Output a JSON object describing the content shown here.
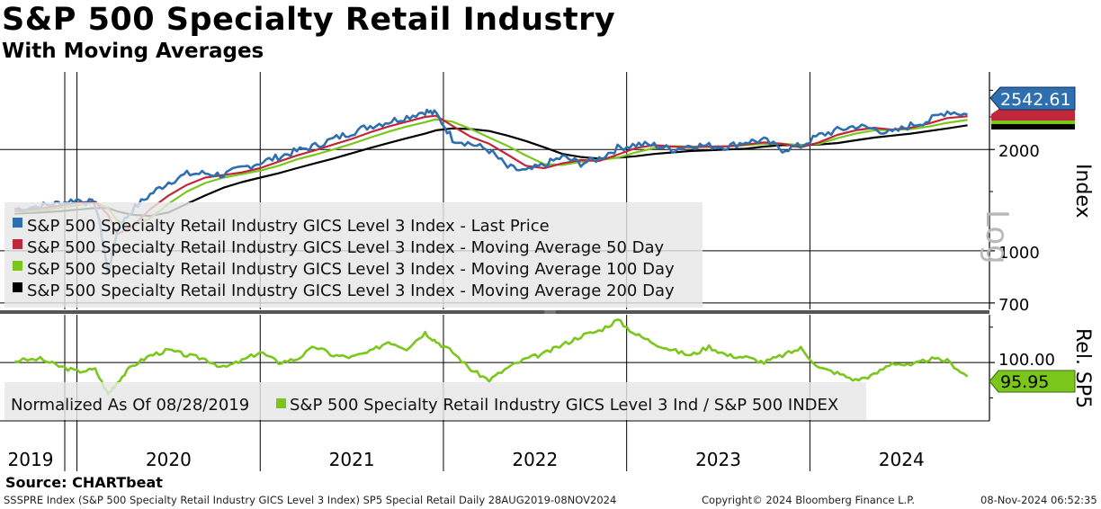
{
  "header": {
    "title": "S&P 500 Specialty Retail Industry",
    "subtitle": "With Moving Averages"
  },
  "footer": {
    "source": "Source: CHARTbeat",
    "description": "SSSPRE Index (S&P 500 Specialty Retail Industry GICS Level 3 Index) SP5 Special Retail  Daily 28AUG2019-08NOV2024",
    "copyright": "Copyright© 2024 Bloomberg Finance L.P.",
    "timestamp": "08-Nov-2024 06:52:35"
  },
  "chart_data": [
    {
      "type": "line",
      "panel": "upper",
      "title": "S&P 500 Specialty Retail Industry",
      "yscale": "log",
      "scale_label": "Log",
      "ylabel": "Index",
      "ylim": [
        670,
        3400
      ],
      "yticks": [
        "2000",
        "1000",
        "700"
      ],
      "ytick_values": [
        2000,
        1000,
        700
      ],
      "x": [
        2019.66,
        2019.8,
        2019.9,
        2020.0,
        2020.1,
        2020.17,
        2020.22,
        2020.3,
        2020.4,
        2020.5,
        2020.6,
        2020.7,
        2020.8,
        2020.9,
        2021.0,
        2021.1,
        2021.2,
        2021.3,
        2021.4,
        2021.5,
        2021.6,
        2021.7,
        2021.8,
        2021.9,
        2021.96,
        2022.05,
        2022.15,
        2022.25,
        2022.35,
        2022.45,
        2022.55,
        2022.65,
        2022.75,
        2022.85,
        2022.95,
        2023.05,
        2023.15,
        2023.25,
        2023.35,
        2023.45,
        2023.55,
        2023.65,
        2023.75,
        2023.85,
        2023.95,
        2024.05,
        2024.15,
        2024.25,
        2024.35,
        2024.45,
        2024.55,
        2024.65,
        2024.75,
        2024.86
      ],
      "series": [
        {
          "name": "S&P 500 Specialty Retail Industry GICS Level 3 Index - Last Price",
          "color": "#2e6fb0",
          "last_value": "2542.61",
          "values": [
            1330,
            1360,
            1385,
            1420,
            1380,
            850,
            1150,
            1320,
            1470,
            1600,
            1690,
            1700,
            1680,
            1760,
            1830,
            1900,
            1980,
            2050,
            2150,
            2250,
            2350,
            2420,
            2500,
            2600,
            2550,
            2150,
            2080,
            1990,
            1770,
            1720,
            1800,
            1900,
            1820,
            1880,
            2020,
            2070,
            2060,
            2000,
            2060,
            2050,
            2040,
            2110,
            2130,
            2000,
            2050,
            2200,
            2280,
            2350,
            2300,
            2240,
            2360,
            2440,
            2600,
            2542
          ]
        },
        {
          "name": "S&P 500 Specialty Retail Industry GICS Level 3 Index - Moving Average 50 Day",
          "color": "#c0273a",
          "values": [
            1315,
            1335,
            1360,
            1390,
            1400,
            1280,
            1120,
            1180,
            1330,
            1460,
            1570,
            1650,
            1680,
            1710,
            1760,
            1840,
            1920,
            1990,
            2070,
            2150,
            2250,
            2340,
            2420,
            2500,
            2520,
            2350,
            2180,
            2080,
            1930,
            1790,
            1760,
            1820,
            1860,
            1850,
            1930,
            2020,
            2060,
            2040,
            2030,
            2040,
            2045,
            2070,
            2100,
            2080,
            2030,
            2100,
            2210,
            2280,
            2320,
            2290,
            2320,
            2390,
            2480,
            2510
          ]
        },
        {
          "name": "S&P 500 Specialty Retail Industry GICS Level 3 Index - Moving Average 100 Day",
          "color": "#7ac61a",
          "values": [
            1300,
            1315,
            1340,
            1365,
            1390,
            1340,
            1230,
            1180,
            1250,
            1380,
            1500,
            1590,
            1650,
            1690,
            1730,
            1790,
            1870,
            1930,
            2000,
            2080,
            2170,
            2260,
            2340,
            2410,
            2460,
            2420,
            2300,
            2170,
            2050,
            1920,
            1810,
            1800,
            1840,
            1860,
            1890,
            1960,
            2020,
            2045,
            2040,
            2035,
            2040,
            2060,
            2080,
            2080,
            2060,
            2080,
            2160,
            2230,
            2280,
            2290,
            2300,
            2340,
            2400,
            2450
          ]
        },
        {
          "name": "S&P 500 Specialty Retail Industry GICS Level 3 Index - Moving Average 200 Day",
          "color": "#000000",
          "values": [
            1290,
            1300,
            1310,
            1325,
            1340,
            1340,
            1310,
            1280,
            1270,
            1300,
            1380,
            1460,
            1540,
            1600,
            1650,
            1700,
            1760,
            1820,
            1880,
            1950,
            2020,
            2090,
            2160,
            2230,
            2280,
            2310,
            2300,
            2270,
            2200,
            2120,
            2030,
            1940,
            1900,
            1880,
            1890,
            1910,
            1940,
            1960,
            1980,
            1990,
            2000,
            2010,
            2040,
            2060,
            2060,
            2070,
            2090,
            2130,
            2170,
            2200,
            2230,
            2270,
            2310,
            2360
          ]
        }
      ]
    },
    {
      "type": "line",
      "panel": "lower",
      "ylabel": "Rel. SP5",
      "note": "Normalized As Of 08/28/2019",
      "yticks": [
        "100.00"
      ],
      "ytick_values": [
        100
      ],
      "ylim": [
        84,
        113
      ],
      "x": [
        2019.66,
        2019.8,
        2019.9,
        2020.0,
        2020.1,
        2020.17,
        2020.22,
        2020.3,
        2020.4,
        2020.5,
        2020.6,
        2020.7,
        2020.8,
        2020.9,
        2021.0,
        2021.1,
        2021.2,
        2021.3,
        2021.4,
        2021.5,
        2021.6,
        2021.7,
        2021.8,
        2021.9,
        2021.96,
        2022.05,
        2022.15,
        2022.25,
        2022.35,
        2022.45,
        2022.55,
        2022.65,
        2022.75,
        2022.85,
        2022.95,
        2023.05,
        2023.15,
        2023.25,
        2023.35,
        2023.45,
        2023.55,
        2023.65,
        2023.75,
        2023.85,
        2023.95,
        2024.05,
        2024.15,
        2024.25,
        2024.35,
        2024.45,
        2024.55,
        2024.65,
        2024.75,
        2024.86
      ],
      "series": [
        {
          "name": "S&P 500 Specialty Retail Industry GICS Level 3 Ind / S&P 500 INDEX",
          "color": "#7ac61a",
          "last_value": "95.95",
          "values": [
            100.5,
            101.0,
            99.0,
            97.5,
            98.0,
            91.0,
            94.5,
            99.0,
            102.0,
            103.5,
            102.0,
            101.0,
            98.5,
            100.5,
            103.0,
            100.0,
            101.0,
            104.5,
            102.0,
            101.5,
            103.0,
            106.0,
            104.0,
            108.5,
            106.0,
            103.0,
            98.0,
            95.0,
            98.5,
            101.0,
            102.5,
            105.0,
            107.5,
            109.0,
            112.0,
            108.0,
            105.5,
            103.5,
            102.0,
            104.5,
            102.0,
            101.5,
            100.0,
            102.0,
            104.0,
            98.5,
            97.0,
            95.0,
            96.5,
            100.0,
            99.0,
            101.0,
            100.5,
            96.0
          ]
        }
      ]
    }
  ],
  "x_axis": {
    "year_labels": [
      "2019",
      "2020",
      "2021",
      "2022",
      "2023",
      "2024"
    ],
    "year_label_positions": [
      2019.83,
      2020.5,
      2021.5,
      2022.5,
      2023.5,
      2024.5
    ],
    "gridlines": [
      2020,
      2021,
      2022,
      2023,
      2024
    ]
  }
}
